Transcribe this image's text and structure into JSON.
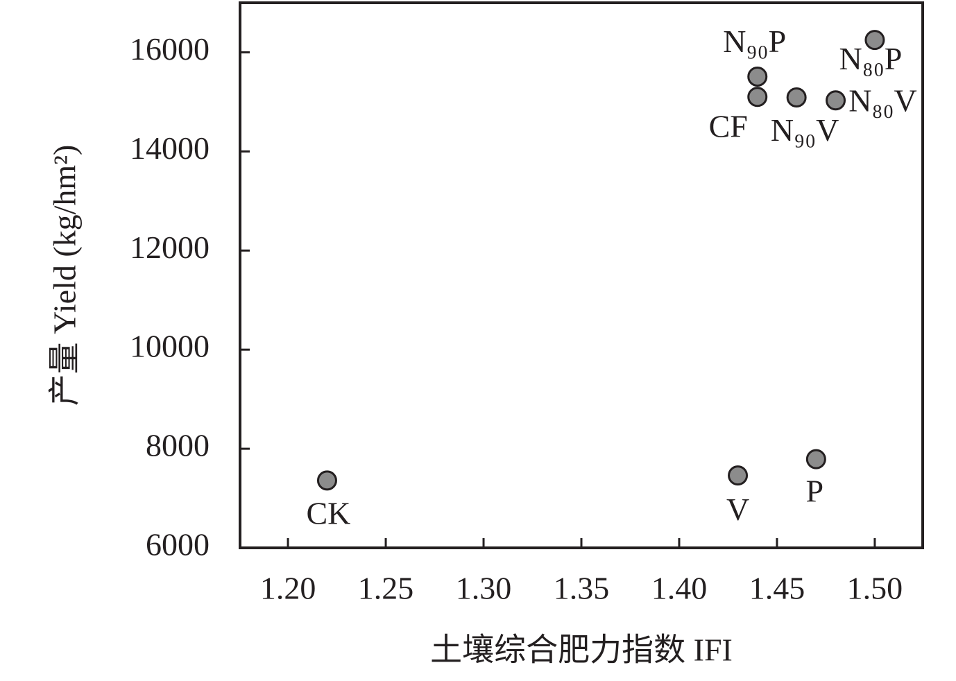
{
  "chart_data": {
    "type": "scatter",
    "x_label": "土壤综合肥力指数 IFI",
    "y_label": "产量 Yield (kg/hm²)",
    "x": [
      1.22,
      1.43,
      1.47,
      1.44,
      1.44,
      1.46,
      1.48,
      1.5
    ],
    "values": [
      7360,
      7460,
      7790,
      15510,
      15100,
      15090,
      15030,
      16250
    ],
    "point_labels": [
      "CK",
      "V",
      "P",
      "N₉₀P",
      "CF",
      "N₉₀V",
      "N₈₀V",
      "N₈₀P"
    ],
    "color": "#8c8c8c",
    "xlim": [
      1.1755,
      1.5245
    ],
    "xticks": [
      {
        "value": 1.2,
        "label": "1.20"
      },
      {
        "value": 1.25,
        "label": "1.25"
      },
      {
        "value": 1.3,
        "label": "1.30"
      },
      {
        "value": 1.35,
        "label": "1.35"
      },
      {
        "value": 1.4,
        "label": "1.40"
      },
      {
        "value": 1.45,
        "label": "1.45"
      },
      {
        "value": 1.5,
        "label": "1.50"
      }
    ],
    "ylim": [
      6000,
      17000
    ],
    "yticks": [
      6000,
      8000,
      10000,
      12000,
      14000,
      16000
    ]
  }
}
